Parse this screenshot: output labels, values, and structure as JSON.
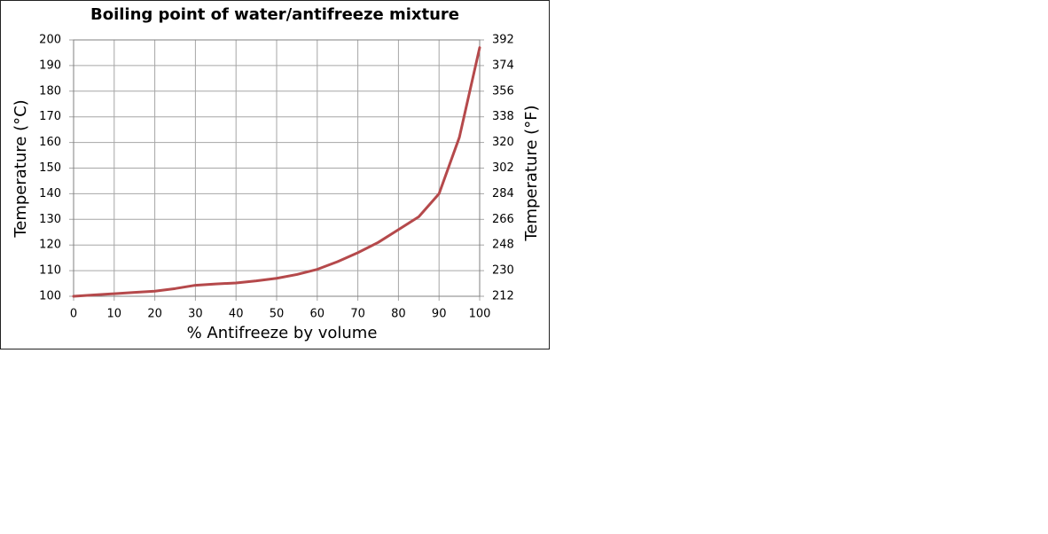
{
  "chart_data": {
    "type": "line",
    "title": "Boiling point of water/antifreeze mixture",
    "xlabel": "% Antifreeze by volume",
    "ylabel": "Temperature (°C)",
    "y2label": "Temperature (°F)",
    "x": [
      0,
      5,
      10,
      15,
      20,
      25,
      30,
      35,
      40,
      45,
      50,
      55,
      60,
      65,
      70,
      75,
      80,
      85,
      90,
      95,
      100
    ],
    "values": [
      100,
      100.5,
      101,
      101.5,
      102,
      103,
      104.3,
      104.8,
      105.2,
      106,
      107,
      108.5,
      110.5,
      113.5,
      117,
      121,
      126,
      131,
      140,
      162,
      197
    ],
    "color": "#b5494b",
    "xlim": [
      0,
      100
    ],
    "xticks": [
      0,
      10,
      20,
      30,
      40,
      50,
      60,
      70,
      80,
      90,
      100
    ],
    "ylim": [
      100,
      200
    ],
    "yticks": [
      100,
      110,
      120,
      130,
      140,
      150,
      160,
      170,
      180,
      190,
      200
    ],
    "y2lim": [
      212,
      392
    ],
    "y2ticks": [
      212,
      230,
      248,
      266,
      284,
      302,
      320,
      338,
      356,
      374,
      392
    ],
    "grid": true
  }
}
